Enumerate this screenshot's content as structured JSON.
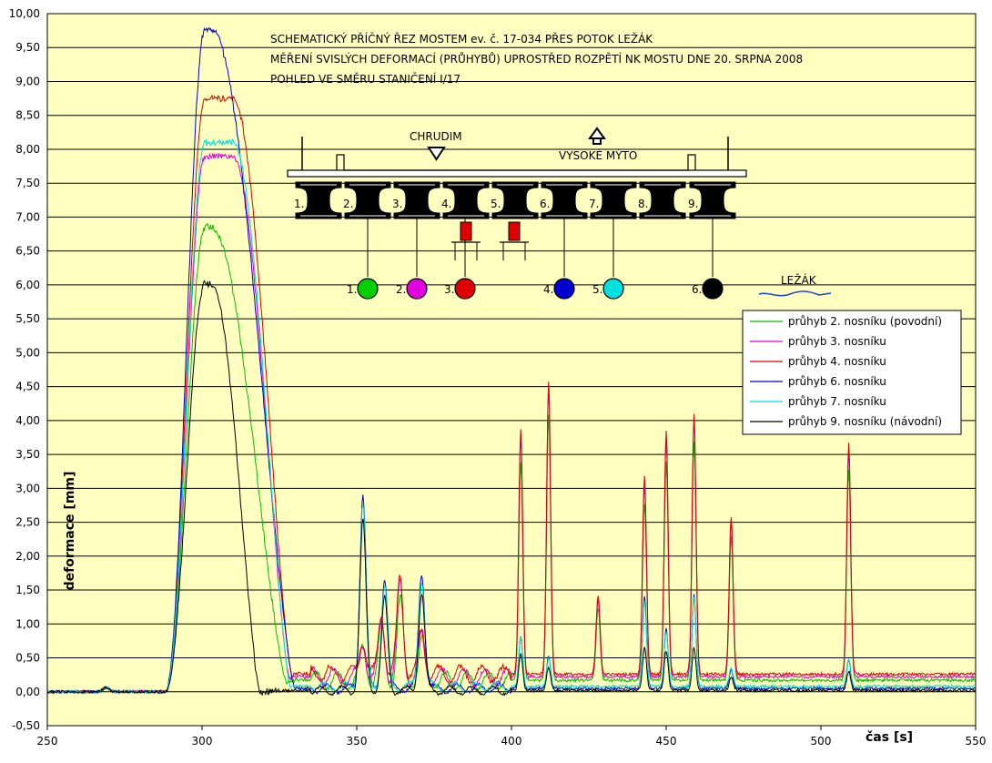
{
  "chart_data": {
    "type": "line",
    "title_lines": [
      "SCHEMATICKÝ PŘÍČNÝ ŘEZ MOSTEM ev. č. 17-034 PŘES POTOK LEŽÁK",
      "MĚŘENÍ SVISLÝCH DEFORMACÍ (PRŮHYBŮ) UPROSTŘED ROZPĚTÍ NK MOSTU DNE 20. SRPNA 2008",
      "POHLED VE SMĚRU STANIČENÍ I/17"
    ],
    "xlabel": "čas [s]",
    "ylabel": "deformace [mm]",
    "xlim": [
      250,
      550
    ],
    "ylim": [
      -0.5,
      10.0
    ],
    "x_ticks": [
      "250",
      "300",
      "350",
      "400",
      "450",
      "500",
      "550"
    ],
    "y_ticks": [
      "-0,50",
      "0,00",
      "0,50",
      "1,00",
      "1,50",
      "2,00",
      "2,50",
      "3,00",
      "3,50",
      "4,00",
      "4,50",
      "5,00",
      "5,50",
      "6,00",
      "6,50",
      "7,00",
      "7,50",
      "8,00",
      "8,50",
      "9,00",
      "9,50",
      "10,00"
    ],
    "grid": "horizontal",
    "legend_position": "right",
    "plot_background": "#ffffc0",
    "series": [
      {
        "name": "průhyb 2. nosníku (povodní)",
        "color": "#00c000",
        "peak": 6.85,
        "base": 0.17,
        "peaks": [
          [
            352,
            0.55
          ],
          [
            358,
            0.85
          ],
          [
            364,
            1.25
          ],
          [
            371,
            0.65
          ],
          [
            403,
            3.3
          ],
          [
            412,
            4.0
          ],
          [
            428,
            1.15
          ],
          [
            443,
            2.7
          ],
          [
            450,
            3.3
          ],
          [
            459,
            3.6
          ],
          [
            471,
            2.2
          ],
          [
            509,
            3.2
          ]
        ]
      },
      {
        "name": "průhyb 3. nosníku",
        "color": "#e000e0",
        "peak": 7.9,
        "base": 0.22,
        "peaks": [
          [
            352,
            0.6
          ],
          [
            358,
            0.95
          ],
          [
            364,
            1.45
          ],
          [
            371,
            0.7
          ],
          [
            403,
            3.65
          ],
          [
            412,
            4.35
          ],
          [
            428,
            1.25
          ],
          [
            443,
            2.95
          ],
          [
            450,
            3.6
          ],
          [
            459,
            3.9
          ],
          [
            471,
            2.4
          ],
          [
            509,
            3.45
          ]
        ]
      },
      {
        "name": "průhyb 4. nosníku",
        "color": "#e00000",
        "peak": 8.75,
        "base": 0.26,
        "peaks": [
          [
            352,
            0.65
          ],
          [
            358,
            1.0
          ],
          [
            364,
            1.55
          ],
          [
            371,
            0.75
          ],
          [
            403,
            3.75
          ],
          [
            412,
            4.45
          ],
          [
            428,
            1.3
          ],
          [
            443,
            3.05
          ],
          [
            450,
            3.7
          ],
          [
            459,
            3.95
          ],
          [
            471,
            2.45
          ],
          [
            509,
            3.55
          ]
        ]
      },
      {
        "name": "průhyb 6. nosníku",
        "color": "#0000d0",
        "peak": 9.78,
        "base": 0.05,
        "peaks": [
          [
            352,
            2.9
          ],
          [
            359,
            1.65
          ],
          [
            371,
            1.75
          ],
          [
            403,
            0.8
          ],
          [
            412,
            0.5
          ],
          [
            443,
            1.4
          ],
          [
            450,
            0.9
          ],
          [
            459,
            1.4
          ],
          [
            471,
            0.3
          ],
          [
            509,
            0.45
          ]
        ]
      },
      {
        "name": "průhyb 7. nosníku",
        "color": "#00e0e0",
        "peak": 8.1,
        "base": 0.08,
        "peaks": [
          [
            352,
            2.7
          ],
          [
            359,
            1.5
          ],
          [
            371,
            1.6
          ],
          [
            403,
            0.75
          ],
          [
            412,
            0.45
          ],
          [
            443,
            1.3
          ],
          [
            450,
            0.85
          ],
          [
            459,
            1.35
          ],
          [
            471,
            0.3
          ],
          [
            509,
            0.45
          ]
        ]
      },
      {
        "name": "průhyb 9. nosníku (návodní)",
        "color": "#000000",
        "peak": 6.02,
        "base": 0.02,
        "peaks": [
          [
            352,
            2.5
          ],
          [
            359,
            1.35
          ],
          [
            371,
            1.45
          ],
          [
            403,
            0.55
          ],
          [
            412,
            0.35
          ],
          [
            443,
            0.65
          ],
          [
            450,
            0.6
          ],
          [
            459,
            0.65
          ],
          [
            471,
            0.2
          ],
          [
            509,
            0.3
          ]
        ]
      }
    ]
  },
  "diagram": {
    "direction_left": "CHRUDIM",
    "direction_right": "VYSOKÉ MÝTO",
    "stream": "LEŽÁK",
    "beam_numbers": [
      "1.",
      "2.",
      "3.",
      "4.",
      "5.",
      "6.",
      "7.",
      "8.",
      "9."
    ],
    "sensor_numbers": [
      "1.",
      "2.",
      "3.",
      "4.",
      "5.",
      "6."
    ],
    "sensor_colors": [
      "#00d000",
      "#e000e0",
      "#e00000",
      "#0000d0",
      "#00e0e0",
      "#000000"
    ]
  }
}
